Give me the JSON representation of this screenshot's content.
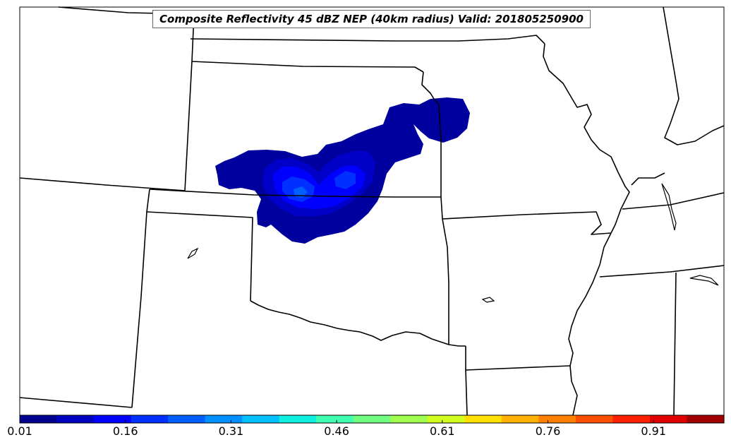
{
  "title": "Composite Reflectivity 45 dBZ NEP (40km radius) Valid: 201805250900",
  "colorbar": {
    "ticks": [
      "0.01",
      "0.16",
      "0.31",
      "0.46",
      "0.61",
      "0.76",
      "0.91"
    ],
    "colors": [
      "#00008f",
      "#0000c0",
      "#0000ff",
      "#0030ff",
      "#0060ff",
      "#0090ff",
      "#00c0ff",
      "#10f0e0",
      "#40ffb0",
      "#70ff80",
      "#a0ff50",
      "#d0ff20",
      "#ffe000",
      "#ffb000",
      "#ff8000",
      "#ff5000",
      "#ff2000",
      "#e00000",
      "#a00000"
    ]
  },
  "probability_contours": {
    "colors": [
      "#00009f",
      "#0000c8",
      "#0000ff",
      "#0030ff",
      "#0060ff"
    ]
  }
}
